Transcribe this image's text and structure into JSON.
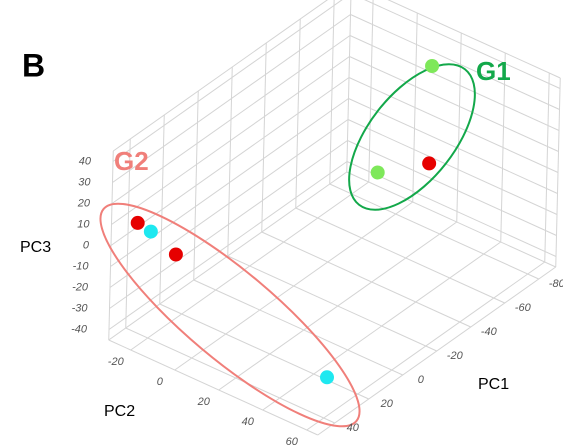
{
  "chart_data": {
    "type": "scatter3d",
    "panel": "B",
    "xlabel": "PC1",
    "ylabel": "PC2",
    "zlabel": "PC3",
    "xlim": [
      -90,
      50
    ],
    "ylim": [
      -30,
      65
    ],
    "zlim": [
      -45,
      45
    ],
    "xticks": [
      -80,
      -60,
      -40,
      -20,
      0,
      20,
      40
    ],
    "yticks": [
      -20,
      0,
      20,
      40,
      60
    ],
    "zticks": [
      -40,
      -30,
      -20,
      -10,
      0,
      10,
      20,
      30,
      40
    ],
    "grid": true,
    "series": [
      {
        "color": "#e60000",
        "x": [
          41,
          31,
          -66
        ],
        "y": [
          -25,
          -15,
          25
        ],
        "z": [
          8,
          -8,
          -1
        ]
      },
      {
        "color": "#1ee8f0",
        "x": [
          37,
          24
        ],
        "y": [
          -22,
          49
        ],
        "z": [
          3,
          -40
        ]
      },
      {
        "color": "#7ee85a",
        "x": [
          -73,
          -42
        ],
        "y": [
          20,
          20
        ],
        "z": [
          39,
          6
        ]
      }
    ],
    "annotations": [
      {
        "text": "G1",
        "color": "#13a84a"
      },
      {
        "text": "G2",
        "color": "#f07f7a"
      }
    ]
  }
}
